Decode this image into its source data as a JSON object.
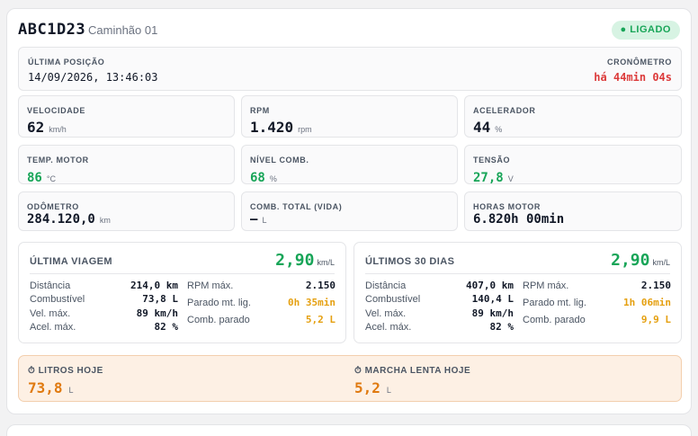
{
  "header": {
    "plate": "ABC1D23",
    "vehicle_name": "Caminhão 01",
    "status": "● LIGADO",
    "status_color": "#18a558"
  },
  "position": {
    "label": "ÚLTIMA POSIÇÃO",
    "datetime": "14/09/2026, 13:46:03",
    "timer_label": "CRONÔMETRO",
    "timer_value": "há 44min 04s"
  },
  "metrics": [
    {
      "label": "VELOCIDADE",
      "value": "62",
      "unit": "km/h"
    },
    {
      "label": "RPM",
      "value": "1.420",
      "unit": "rpm"
    },
    {
      "label": "ACELERADOR",
      "value": "44",
      "unit": "%"
    },
    {
      "label": "TEMP. MOTOR",
      "value": "86",
      "unit": "°C"
    },
    {
      "label": "NÍVEL COMB.",
      "value": "68",
      "unit": "%"
    },
    {
      "label": "TENSÃO",
      "value": "27,8",
      "unit": "V"
    },
    {
      "label": "ODÔMETRO",
      "value": "284.120,0",
      "unit": "km"
    },
    {
      "label": "COMB. TOTAL (VIDA)",
      "value": "—",
      "unit": "L"
    },
    {
      "label": "HORAS MOTOR",
      "value": "6.820h 00min",
      "unit": ""
    }
  ],
  "trips": [
    {
      "title": "ÚLTIMA VIAGEM",
      "efficiency": "2,90",
      "efficiency_unit": "km/L",
      "left": [
        {
          "k": "Distância",
          "v": "214,0 km"
        },
        {
          "k": "Combustível",
          "v": "73,8 L"
        },
        {
          "k": "Vel. máx.",
          "v": "89 km/h"
        },
        {
          "k": "Acel. máx.",
          "v": "82 %"
        }
      ],
      "right": [
        {
          "k": "RPM máx.",
          "v": "2.150"
        },
        {
          "k": "Parado mt. lig.",
          "v": "0h 35min"
        },
        {
          "k": "Comb. parado",
          "v": "5,2 L"
        }
      ]
    },
    {
      "title": "ÚLTIMOS 30 DIAS",
      "efficiency": "2,90",
      "efficiency_unit": "km/L",
      "left": [
        {
          "k": "Distância",
          "v": "407,0 km"
        },
        {
          "k": "Combustível",
          "v": "140,4 L"
        },
        {
          "k": "Vel. máx.",
          "v": "89 km/h"
        },
        {
          "k": "Acel. máx.",
          "v": "82 %"
        }
      ],
      "right": [
        {
          "k": "RPM máx.",
          "v": "2.150"
        },
        {
          "k": "Parado mt. lig.",
          "v": "1h 06min"
        },
        {
          "k": "Comb. parado",
          "v": "9,9 L"
        }
      ]
    }
  ],
  "today": {
    "liters_label": "⏱ LITROS HOJE",
    "liters_value": "73,8",
    "liters_unit": "L",
    "idle_label": "⏱ MARCHA LENTA HOJE",
    "idle_value": "5,2",
    "idle_unit": "L"
  }
}
